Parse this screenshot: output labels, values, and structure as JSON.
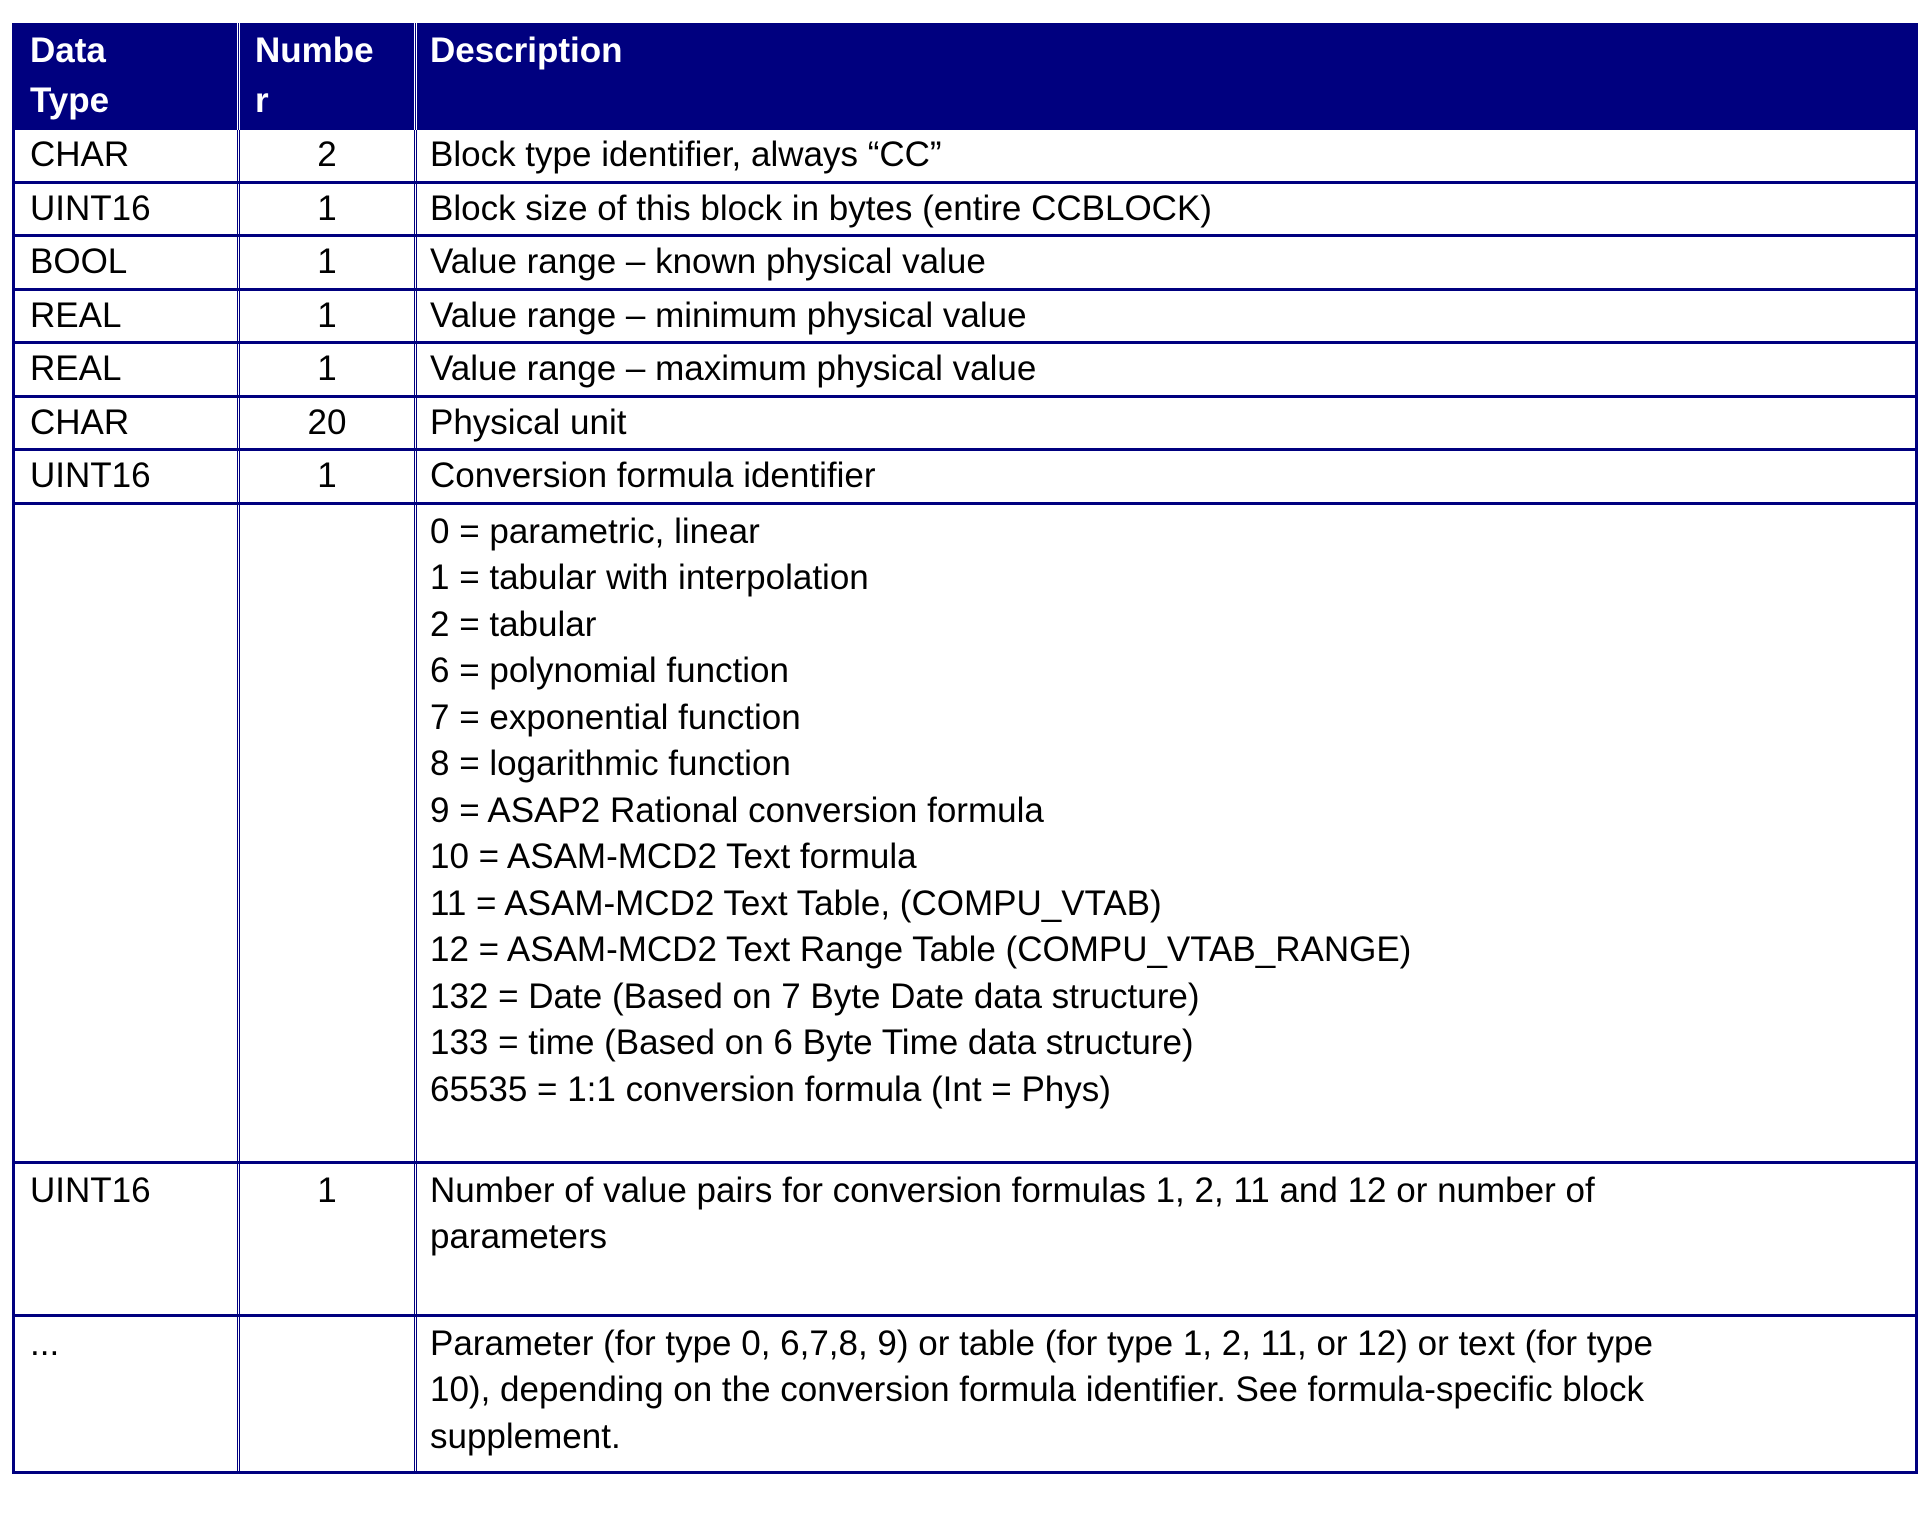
{
  "table": {
    "header": [
      {
        "lines": [
          "Data",
          "Type"
        ]
      },
      {
        "lines": [
          "Numbe",
          "r"
        ]
      },
      {
        "lines": [
          "Description"
        ]
      }
    ],
    "rows": [
      {
        "type": "CHAR",
        "number": "2",
        "description": [
          "Block type identifier, always “CC”"
        ]
      },
      {
        "type": "UINT16",
        "number": "1",
        "description": [
          "Block size of this block in bytes (entire CCBLOCK)"
        ]
      },
      {
        "type": "BOOL",
        "number": "1",
        "description": [
          "Value range – known physical value"
        ]
      },
      {
        "type": "REAL",
        "number": "1",
        "description": [
          "Value range – minimum physical value"
        ]
      },
      {
        "type": "REAL",
        "number": "1",
        "description": [
          "Value range – maximum physical value"
        ]
      },
      {
        "type": "CHAR",
        "number": "20",
        "description": [
          "Physical unit"
        ]
      },
      {
        "type": "UINT16",
        "number": "1",
        "description": [
          "Conversion formula identifier"
        ]
      },
      {
        "type": "",
        "number": "",
        "description": [
          "0 = parametric, linear",
          "1 = tabular with interpolation",
          "2 = tabular",
          "6 = polynomial function",
          "7 = exponential function",
          "8 = logarithmic function",
          "9 = ASAP2 Rational conversion formula",
          "10 = ASAM-MCD2 Text formula",
          "11 = ASAM-MCD2 Text Table, (COMPU_VTAB)",
          "12 = ASAM-MCD2 Text Range Table (COMPU_VTAB_RANGE)",
          "132 = Date (Based on 7 Byte Date data structure)",
          "133 = time (Based on 6 Byte Time data structure)",
          "65535 = 1:1 conversion formula (Int = Phys)"
        ]
      },
      {
        "type": "UINT16",
        "number": "1",
        "description": [
          "Number of value pairs for conversion formulas 1, 2, 11 and 12 or number of",
          "parameters"
        ]
      },
      {
        "type": "...",
        "number": "",
        "description": [
          "Parameter (for type 0, 6,7,8, 9) or table (for type 1, 2, 11, or 12) or text (for type",
          "10), depending on the conversion formula identifier. See formula-specific block",
          "supplement."
        ]
      }
    ]
  },
  "colors": {
    "header_bg": "#00007f",
    "border": "#00007f",
    "header_text": "#ffffff"
  }
}
